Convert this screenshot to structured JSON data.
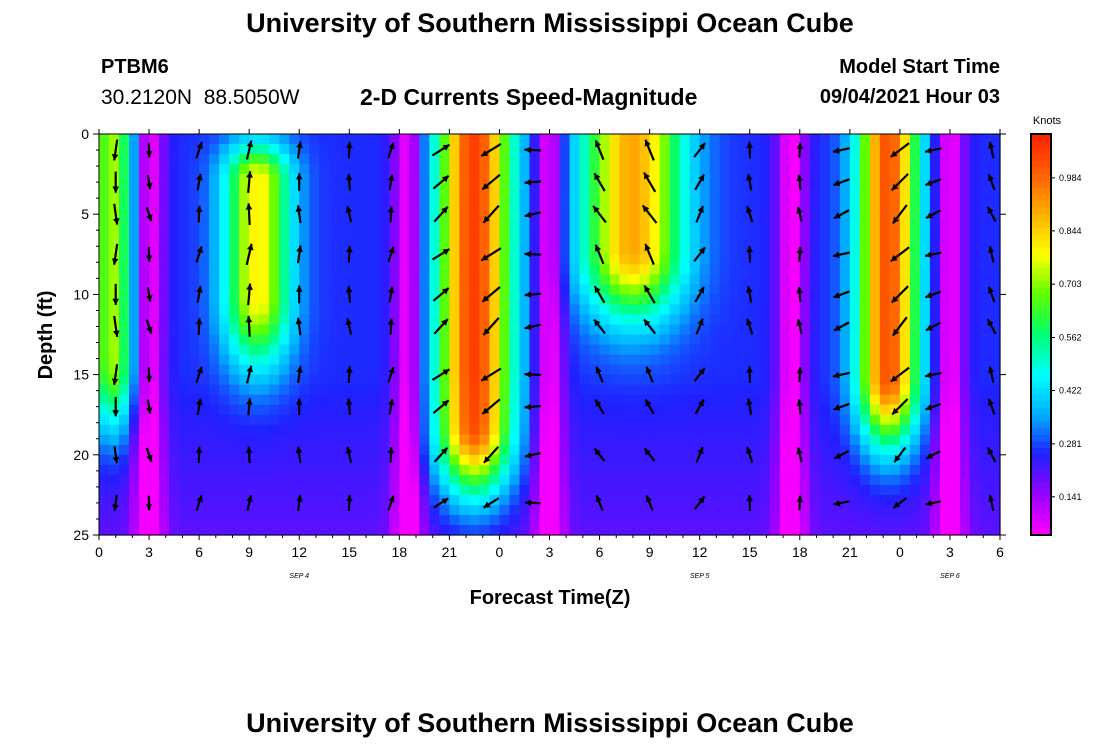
{
  "header": {
    "title": "University of Southern Mississippi Ocean Cube",
    "station": "PTBM6",
    "coords": "30.2120N  88.5050W",
    "subtitle": "2-D Currents Speed-Magnitude",
    "model_label": "Model Start Time",
    "model_time": "09/04/2021 Hour 03"
  },
  "footer": {
    "title": "University of Southern Mississippi Ocean Cube"
  },
  "chart_data": {
    "type": "heatmap",
    "title": "2-D Currents Speed-Magnitude",
    "xlabel": "Forecast Time(Z)",
    "ylabel": "Depth (ft)",
    "x_range_hours": [
      0,
      54
    ],
    "x_tick_labels": [
      "0",
      "3",
      "6",
      "9",
      "12",
      "15",
      "18",
      "21",
      "0",
      "3",
      "6",
      "9",
      "12",
      "15",
      "18",
      "21",
      "0",
      "3",
      "6"
    ],
    "date_labels": [
      {
        "label": "SEP 4",
        "hour": 12
      },
      {
        "label": "SEP 5",
        "hour": 36
      },
      {
        "label": "SEP 6",
        "hour": 51
      }
    ],
    "y_range_ft": [
      0,
      25
    ],
    "y_tick_labels": [
      "0",
      "5",
      "10",
      "15",
      "20",
      "25"
    ],
    "colorbar": {
      "unit": "Knots",
      "ticks": [
        "0.141",
        "0.281",
        "0.422",
        "0.562",
        "0.703",
        "0.844",
        "0.984"
      ],
      "tick_values": [
        0.141,
        0.281,
        0.422,
        0.562,
        0.703,
        0.844,
        0.984
      ],
      "min": 0.04,
      "max": 1.1,
      "colors": [
        "#ff00ff",
        "#9900ff",
        "#2020ff",
        "#00b0ff",
        "#00ffff",
        "#00ff70",
        "#60ff00",
        "#ffff00",
        "#ffb000",
        "#ff6000",
        "#ff2000"
      ]
    },
    "speed_features": [
      {
        "center_hour": 0.8,
        "width_hours": 1.3,
        "top_ft": 0,
        "bottom_ft": 14,
        "peak_knots": 0.72
      },
      {
        "center_hour": 9.5,
        "width_hours": 2.0,
        "top_ft": 3,
        "bottom_ft": 10,
        "peak_knots": 0.8
      },
      {
        "center_hour": 22.5,
        "width_hours": 2.2,
        "top_ft": 0,
        "bottom_ft": 18,
        "peak_knots": 1.05
      },
      {
        "center_hour": 32.0,
        "width_hours": 3.0,
        "top_ft": 0,
        "bottom_ft": 7,
        "peak_knots": 0.9
      },
      {
        "center_hour": 47.3,
        "width_hours": 1.8,
        "top_ft": 0,
        "bottom_ft": 15,
        "peak_knots": 1.02
      }
    ],
    "low_speed_bands_hours": [
      3,
      18.5,
      27,
      41.5,
      51
    ],
    "vector_columns_hours": [
      1,
      3,
      6,
      9,
      12,
      15,
      17.5,
      20.5,
      23.5,
      26,
      30,
      33,
      36,
      39,
      42,
      44.5,
      48,
      50,
      53.5
    ],
    "vector_rows_ft": [
      1,
      3,
      5,
      7.5,
      10,
      12,
      15,
      17,
      20,
      23
    ],
    "vector_angles_by_column_deg": [
      -90,
      -80,
      80,
      85,
      90,
      95,
      80,
      40,
      220,
      185,
      120,
      120,
      60,
      100,
      95,
      200,
      225,
      200,
      110
    ]
  }
}
